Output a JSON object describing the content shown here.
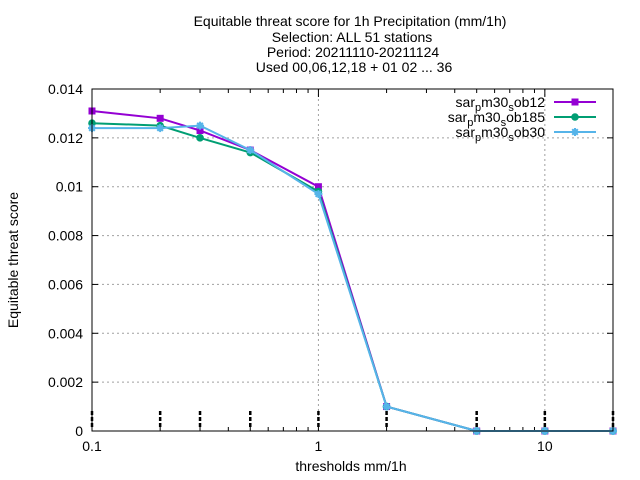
{
  "chart_data": {
    "type": "line",
    "title_lines": [
      "Equitable threat score  for 1h Precipitation (mm/1h)",
      "Selection: ALL     51 stations",
      "Period: 20211110-20211124",
      "Used 00,06,12,18 + 01 02 ... 36"
    ],
    "xlabel": "thresholds mm/1h",
    "ylabel": "Equitable threat score",
    "x_scale": "log",
    "xlim": [
      0.1,
      20
    ],
    "ylim": [
      0,
      0.014
    ],
    "grid": true,
    "legend_position": "top-right",
    "x_ticks": [
      {
        "value": 0.1,
        "label": "0.1"
      },
      {
        "value": 1,
        "label": "1"
      },
      {
        "value": 10,
        "label": "10"
      }
    ],
    "y_ticks": [
      {
        "value": 0,
        "label": "0"
      },
      {
        "value": 0.002,
        "label": "0.002"
      },
      {
        "value": 0.004,
        "label": "0.004"
      },
      {
        "value": 0.006,
        "label": "0.006"
      },
      {
        "value": 0.008,
        "label": "0.008"
      },
      {
        "value": 0.01,
        "label": "0.01"
      },
      {
        "value": 0.012,
        "label": "0.012"
      },
      {
        "value": 0.014,
        "label": "0.014"
      }
    ],
    "x": [
      0.1,
      0.2,
      0.3,
      0.5,
      1,
      2,
      5,
      10,
      20
    ],
    "series": [
      {
        "name": "sar_pm30_sob12",
        "legend_parts": [
          "sar",
          "p",
          "m30",
          "s",
          "ob12"
        ],
        "color": "#9400d3",
        "marker": "square",
        "values": [
          0.0131,
          0.0128,
          0.0123,
          0.0115,
          0.01,
          0.001,
          0.0,
          0.0,
          0.0
        ]
      },
      {
        "name": "sar_pm30_sob185",
        "legend_parts": [
          "sar",
          "p",
          "m30",
          "s",
          "ob185"
        ],
        "color": "#009e73",
        "marker": "circle",
        "values": [
          0.0126,
          0.0125,
          0.012,
          0.0114,
          0.0098,
          0.001,
          0.0,
          0.0,
          0.0
        ]
      },
      {
        "name": "sar_pm30_sob30",
        "legend_parts": [
          "sar",
          "p",
          "m30",
          "s",
          "ob30"
        ],
        "color": "#56b4e9",
        "marker": "star",
        "values": [
          0.0124,
          0.0124,
          0.0125,
          0.0115,
          0.0097,
          0.001,
          0.0,
          0.0,
          0.0
        ]
      }
    ],
    "sample_markers_x": [
      0.1,
      0.2,
      0.3,
      0.5,
      1,
      2,
      5,
      10,
      20
    ]
  }
}
